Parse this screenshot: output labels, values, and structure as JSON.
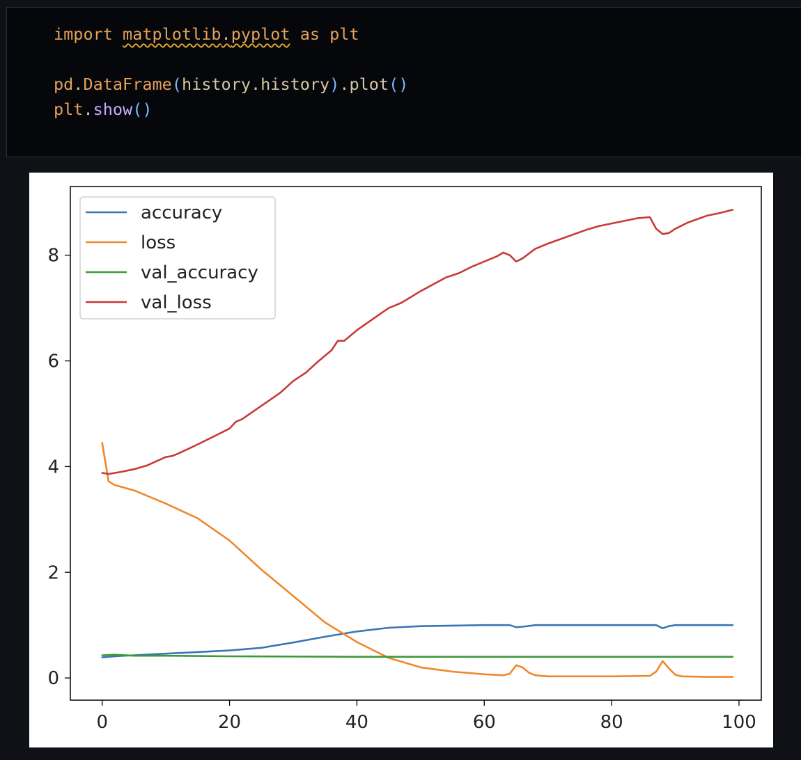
{
  "code_cell": {
    "lines": [
      [
        {
          "text": "import ",
          "cls": "tok-kw"
        },
        {
          "text": "matplotlib",
          "cls": "tok-id tok-squig"
        },
        {
          "text": ".",
          "cls": "tok-dot tok-squig"
        },
        {
          "text": "pyplot",
          "cls": "tok-id tok-squig"
        },
        {
          "text": " as ",
          "cls": "tok-kw"
        },
        {
          "text": "plt",
          "cls": "tok-id"
        }
      ],
      [],
      [
        {
          "text": "pd",
          "cls": "tok-id"
        },
        {
          "text": ".",
          "cls": "tok-dot"
        },
        {
          "text": "DataFrame",
          "cls": "tok-id"
        },
        {
          "text": "(",
          "cls": "tok-paren"
        },
        {
          "text": "history",
          "cls": "tok-dim"
        },
        {
          "text": ".",
          "cls": "tok-dot"
        },
        {
          "text": "history",
          "cls": "tok-dim"
        },
        {
          "text": ")",
          "cls": "tok-paren"
        },
        {
          "text": ".",
          "cls": "tok-dot"
        },
        {
          "text": "plot",
          "cls": "tok-dim"
        },
        {
          "text": "()",
          "cls": "tok-paren"
        }
      ],
      [
        {
          "text": "plt",
          "cls": "tok-id"
        },
        {
          "text": ".",
          "cls": "tok-dot"
        },
        {
          "text": "show",
          "cls": "tok-fn"
        },
        {
          "text": "()",
          "cls": "tok-paren"
        }
      ]
    ]
  },
  "chart_data": {
    "type": "line",
    "title": "",
    "xlabel": "",
    "ylabel": "",
    "xlim": [
      -5,
      103.5
    ],
    "ylim": [
      -0.42,
      9.3
    ],
    "xticks": [
      0,
      20,
      40,
      60,
      80,
      100
    ],
    "yticks": [
      0,
      2,
      4,
      6,
      8
    ],
    "grid": false,
    "legend_position": "upper-left",
    "x_start": 0,
    "x_end": 99,
    "series": [
      {
        "name": "accuracy",
        "color": "#3a75b5",
        "x": [
          0,
          2,
          5,
          10,
          15,
          20,
          25,
          30,
          35,
          40,
          45,
          50,
          55,
          60,
          64,
          65,
          66,
          68,
          70,
          80,
          87,
          88,
          89,
          90,
          95,
          99
        ],
        "values": [
          0.39,
          0.41,
          0.43,
          0.46,
          0.49,
          0.52,
          0.57,
          0.67,
          0.78,
          0.88,
          0.95,
          0.98,
          0.99,
          1.0,
          1.0,
          0.96,
          0.97,
          1.0,
          1.0,
          1.0,
          1.0,
          0.94,
          0.98,
          1.0,
          1.0,
          1.0
        ]
      },
      {
        "name": "loss",
        "color": "#f0872c",
        "x": [
          0,
          1,
          2,
          5,
          10,
          15,
          20,
          25,
          30,
          35,
          40,
          45,
          50,
          55,
          60,
          63,
          64,
          65,
          66,
          67,
          68,
          70,
          75,
          80,
          86,
          87,
          88,
          89,
          90,
          91,
          95,
          99
        ],
        "values": [
          4.45,
          3.72,
          3.65,
          3.55,
          3.3,
          3.02,
          2.6,
          2.05,
          1.55,
          1.05,
          0.68,
          0.38,
          0.2,
          0.12,
          0.07,
          0.05,
          0.08,
          0.24,
          0.2,
          0.1,
          0.05,
          0.03,
          0.03,
          0.03,
          0.04,
          0.12,
          0.32,
          0.18,
          0.06,
          0.03,
          0.02,
          0.02
        ]
      },
      {
        "name": "val_accuracy",
        "color": "#3a9a3a",
        "x": [
          0,
          2,
          5,
          10,
          20,
          40,
          60,
          80,
          99
        ],
        "values": [
          0.43,
          0.44,
          0.42,
          0.42,
          0.41,
          0.4,
          0.4,
          0.4,
          0.4
        ]
      },
      {
        "name": "val_loss",
        "color": "#c83a36",
        "x": [
          0,
          1,
          3,
          5,
          7,
          10,
          11,
          12,
          15,
          18,
          20,
          21,
          22,
          25,
          28,
          30,
          32,
          34,
          36,
          37,
          38,
          40,
          42,
          45,
          46,
          47,
          50,
          52,
          54,
          55,
          56,
          58,
          60,
          62,
          63,
          64,
          65,
          66,
          68,
          70,
          73,
          76,
          78,
          80,
          82,
          84,
          86,
          87,
          88,
          89,
          90,
          92,
          95,
          97,
          99
        ],
        "values": [
          3.88,
          3.86,
          3.9,
          3.95,
          4.02,
          4.18,
          4.2,
          4.25,
          4.42,
          4.6,
          4.72,
          4.85,
          4.9,
          5.15,
          5.4,
          5.62,
          5.78,
          6.0,
          6.2,
          6.38,
          6.38,
          6.58,
          6.75,
          7.0,
          7.05,
          7.1,
          7.32,
          7.45,
          7.58,
          7.62,
          7.66,
          7.78,
          7.88,
          7.98,
          8.05,
          8.0,
          7.88,
          7.94,
          8.12,
          8.22,
          8.35,
          8.48,
          8.55,
          8.6,
          8.65,
          8.7,
          8.72,
          8.5,
          8.4,
          8.42,
          8.5,
          8.62,
          8.75,
          8.8,
          8.86
        ]
      }
    ]
  }
}
